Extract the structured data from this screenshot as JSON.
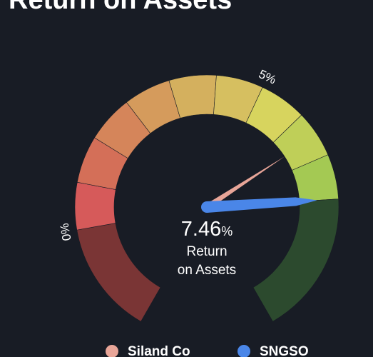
{
  "chart_data": {
    "type": "gauge",
    "title": "Return on Assets",
    "label_lines": [
      "Return",
      "on Assets"
    ],
    "unit": "%",
    "xlim": [
      -2,
      10
    ],
    "xticks": [
      {
        "value": 0,
        "label": "0%"
      },
      {
        "value": 5,
        "label": "5%"
      }
    ],
    "negative_color": "#7a3535",
    "empty_color": "#2c4a2e",
    "band_colors": [
      "#d65a5a",
      "#d46f58",
      "#d5855a",
      "#d59b5c",
      "#d4b05e",
      "#d6bf60",
      "#d7d45e",
      "#bfcf58",
      "#a4c953",
      "#88c250",
      "#78bf4c",
      "#6bbb48"
    ],
    "series": [
      {
        "name": "Siland Co",
        "color": "#e8a598",
        "value": 6.28
      },
      {
        "name": "SNGSO",
        "color": "#4a86e8",
        "value": 7.46
      }
    ]
  }
}
